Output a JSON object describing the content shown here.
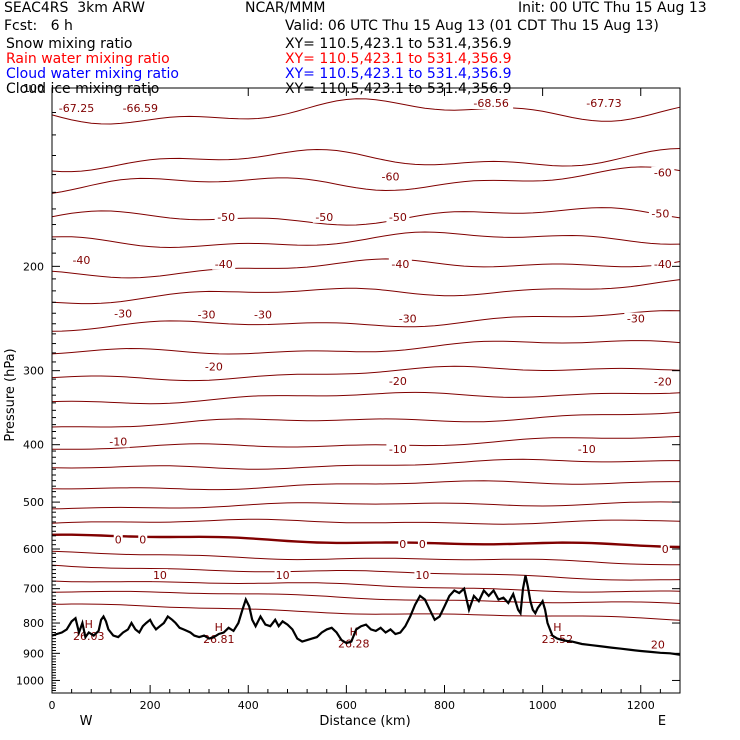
{
  "header": {
    "model": "SEAC4RS  3km ARW",
    "center": "NCAR/MMM",
    "init": "Init: 00 UTC Thu 15 Aug 13",
    "fcst": "Fcst:   6 h",
    "valid": "Valid: 06 UTC Thu 15 Aug 13 (01 CDT Thu 15 Aug 13)",
    "fields": [
      {
        "name": "Snow mixing ratio",
        "xy": "XY= 110.5,423.1 to 531.4,356.9",
        "color": "#000000"
      },
      {
        "name": "Rain water mixing ratio",
        "xy": "XY= 110.5,423.1 to 531.4,356.9",
        "color": "#ff0000"
      },
      {
        "name": "Cloud water mixing ratio",
        "xy": "XY= 110.5,423.1 to 531.4,356.9",
        "color": "#0000ff"
      },
      {
        "name": "Cloud ice mixing ratio",
        "xy": "XY= 110.5,423.1 to 531.4,356.9",
        "color": "#000000"
      }
    ]
  },
  "colors": {
    "contour": "#800000",
    "terrain": "#000000",
    "axis": "#000000"
  },
  "chart_data": {
    "type": "line",
    "xlabel": "Distance (km)",
    "ylabel": "Pressure (hPa)",
    "xlim": [
      0,
      1280
    ],
    "ylim": [
      1050,
      100
    ],
    "y_scale": "log",
    "x_ticks": [
      "0",
      "200",
      "400",
      "600",
      "800",
      "1000",
      "1200"
    ],
    "y_ticks": [
      "100",
      "200",
      "300",
      "400",
      "500",
      "600",
      "700",
      "800",
      "900",
      "1000"
    ],
    "x_end_labels": [
      "W",
      "E"
    ],
    "contour_lines": [
      {
        "p_start": 111,
        "p_end": 108
      },
      {
        "p_start": 133,
        "p_end": 131
      },
      {
        "p_start": 147,
        "p_end": 141
      },
      {
        "p_start": 167,
        "p_end": 163
      },
      {
        "p_start": 183,
        "p_end": 178
      },
      {
        "p_start": 205,
        "p_end": 195
      },
      {
        "p_start": 227,
        "p_end": 215
      },
      {
        "p_start": 255,
        "p_end": 242
      },
      {
        "p_start": 282,
        "p_end": 268
      },
      {
        "p_start": 310,
        "p_end": 295
      },
      {
        "p_start": 338,
        "p_end": 325
      },
      {
        "p_start": 372,
        "p_end": 355
      },
      {
        "p_start": 408,
        "p_end": 390
      },
      {
        "p_start": 440,
        "p_end": 425
      },
      {
        "p_start": 475,
        "p_end": 460
      },
      {
        "p_start": 510,
        "p_end": 500
      },
      {
        "p_start": 540,
        "p_end": 540
      },
      {
        "p_start": 570,
        "p_end": 595,
        "bold": true
      },
      {
        "p_start": 610,
        "p_end": 635
      },
      {
        "p_start": 640,
        "p_end": 675
      },
      {
        "p_start": 675,
        "p_end": 710
      },
      {
        "p_start": 705,
        "p_end": 745
      },
      {
        "p_start": 745,
        "p_end": 790
      }
    ],
    "contour_labels": [
      {
        "text": "-67.25",
        "x": 50,
        "p": 108
      },
      {
        "text": "-66.59",
        "x": 180,
        "p": 108
      },
      {
        "text": "-68.56",
        "x": 895,
        "p": 106
      },
      {
        "text": "-67.73",
        "x": 1125,
        "p": 106
      },
      {
        "text": "-60",
        "x": 690,
        "p": 141
      },
      {
        "text": "-60",
        "x": 1245,
        "p": 139
      },
      {
        "text": "-50",
        "x": 355,
        "p": 165
      },
      {
        "text": "-50",
        "x": 555,
        "p": 165
      },
      {
        "text": "-50",
        "x": 705,
        "p": 165
      },
      {
        "text": "-50",
        "x": 1240,
        "p": 163
      },
      {
        "text": "-40",
        "x": 60,
        "p": 195
      },
      {
        "text": "-40",
        "x": 350,
        "p": 198
      },
      {
        "text": "-40",
        "x": 710,
        "p": 198
      },
      {
        "text": "-40",
        "x": 1245,
        "p": 198
      },
      {
        "text": "-30",
        "x": 145,
        "p": 240
      },
      {
        "text": "-30",
        "x": 315,
        "p": 241
      },
      {
        "text": "-30",
        "x": 430,
        "p": 241
      },
      {
        "text": "-30",
        "x": 725,
        "p": 245
      },
      {
        "text": "-30",
        "x": 1190,
        "p": 245
      },
      {
        "text": "-20",
        "x": 330,
        "p": 295
      },
      {
        "text": "-20",
        "x": 705,
        "p": 312
      },
      {
        "text": "-20",
        "x": 1245,
        "p": 313
      },
      {
        "text": "-10",
        "x": 135,
        "p": 395
      },
      {
        "text": "-10",
        "x": 705,
        "p": 407
      },
      {
        "text": "-10",
        "x": 1090,
        "p": 407
      },
      {
        "text": "0",
        "x": 135,
        "p": 578
      },
      {
        "text": "0",
        "x": 185,
        "p": 578
      },
      {
        "text": "0",
        "x": 715,
        "p": 588
      },
      {
        "text": "0",
        "x": 755,
        "p": 588
      },
      {
        "text": "0",
        "x": 1250,
        "p": 600
      },
      {
        "text": "10",
        "x": 220,
        "p": 664
      },
      {
        "text": "10",
        "x": 470,
        "p": 664
      },
      {
        "text": "10",
        "x": 755,
        "p": 664
      },
      {
        "text": "20",
        "x": 1235,
        "p": 870
      }
    ],
    "highs": [
      {
        "text": "26.03",
        "x": 75,
        "p": 835
      },
      {
        "text": "26.81",
        "x": 340,
        "p": 844
      },
      {
        "text": "26.28",
        "x": 615,
        "p": 860
      },
      {
        "text": "23.52",
        "x": 1030,
        "p": 845
      }
    ],
    "terrain": {
      "x": [
        0,
        10,
        20,
        30,
        40,
        48,
        55,
        62,
        68,
        75,
        85,
        95,
        100,
        105,
        110,
        115,
        125,
        135,
        145,
        155,
        162,
        170,
        178,
        185,
        192,
        200,
        205,
        212,
        220,
        228,
        236,
        245,
        252,
        260,
        268,
        275,
        282,
        290,
        300,
        310,
        320,
        330,
        340,
        350,
        360,
        370,
        380,
        388,
        395,
        402,
        408,
        415,
        425,
        435,
        445,
        455,
        462,
        470,
        480,
        490,
        500,
        510,
        520,
        530,
        540,
        550,
        560,
        570,
        580,
        590,
        600,
        610,
        620,
        630,
        640,
        650,
        660,
        670,
        680,
        690,
        700,
        710,
        720,
        730,
        740,
        750,
        760,
        770,
        780,
        790,
        800,
        810,
        820,
        830,
        840,
        850,
        860,
        870,
        880,
        890,
        900,
        910,
        920,
        930,
        940,
        950,
        955,
        960,
        965,
        970,
        975,
        980,
        985,
        990,
        995,
        1000,
        1005,
        1010,
        1020,
        1030,
        1040,
        1050,
        1060,
        1080,
        1100,
        1120,
        1140,
        1160,
        1180,
        1200,
        1220,
        1240,
        1260,
        1280
      ],
      "p": [
        840,
        835,
        830,
        820,
        795,
        785,
        830,
        800,
        845,
        830,
        840,
        825,
        790,
        780,
        795,
        820,
        840,
        845,
        830,
        820,
        800,
        820,
        830,
        810,
        800,
        790,
        805,
        820,
        810,
        800,
        780,
        790,
        800,
        815,
        820,
        825,
        830,
        840,
        845,
        840,
        850,
        845,
        835,
        830,
        815,
        825,
        800,
        760,
        730,
        750,
        790,
        810,
        780,
        805,
        810,
        790,
        810,
        795,
        805,
        820,
        850,
        860,
        855,
        850,
        845,
        830,
        820,
        815,
        830,
        855,
        865,
        860,
        820,
        810,
        805,
        820,
        825,
        815,
        830,
        820,
        835,
        830,
        810,
        780,
        745,
        720,
        730,
        760,
        790,
        780,
        750,
        720,
        705,
        712,
        700,
        760,
        720,
        735,
        705,
        720,
        705,
        730,
        725,
        740,
        715,
        760,
        770,
        700,
        665,
        695,
        735,
        760,
        770,
        755,
        745,
        735,
        760,
        800,
        840,
        850,
        855,
        858,
        860,
        868,
        872,
        876,
        880,
        884,
        888,
        892,
        895,
        898,
        900,
        905
      ]
    }
  }
}
